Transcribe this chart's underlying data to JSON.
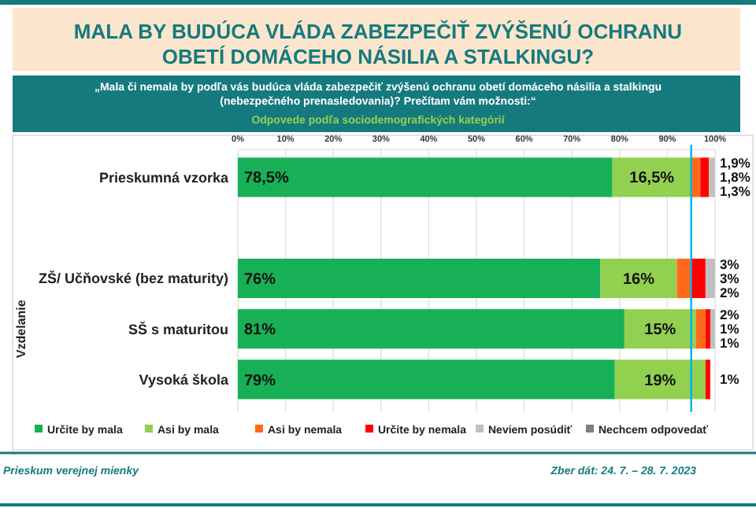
{
  "chart_data": {
    "type": "bar",
    "orientation": "horizontal",
    "stacked": true,
    "title": "MALA BY BUDÚCA VLÁDA ZABEZPEČIŤ ZVÝŠENÚ OCHRANU OBETÍ DOMÁCEHO NÁSILIA A STALKINGU?",
    "subtitle": "„Mala či nemala by podľa vás budúca vláda zabezpečiť zvýšenú ochranu obetí domáceho násilia a stalkingu (nebezpečného prenasledovania)? Prečítam vám možnosti:“",
    "annotations": [
      "Odpovede podľa sociodemografických kategórií",
      "Vzdelanie",
      "Prieskum verejnej mienky",
      "Zber dát: 24. 7. – 28. 7. 2023"
    ],
    "categories": [
      "Prieskumná vzorka",
      null,
      "ZŠ/ Učňovské (bez maturity)",
      "SŠ s maturitou",
      "Vysoká škola"
    ],
    "series": [
      {
        "name": "Určite by mala",
        "color": "#17b057",
        "values": [
          78.5,
          null,
          76,
          81,
          79
        ],
        "value_labels": [
          "78,5%",
          null,
          "76%",
          "81%",
          "79%"
        ]
      },
      {
        "name": "Asi by mala",
        "color": "#92d050",
        "values": [
          16.5,
          null,
          16,
          15,
          19
        ],
        "value_labels": [
          "16,5%",
          null,
          "16%",
          "15%",
          "19%"
        ]
      },
      {
        "name": "Asi by nemala",
        "color": "#ff6a1a",
        "values": [
          1.9,
          null,
          3,
          2,
          null
        ],
        "value_labels": [
          "1,9%",
          null,
          "3%",
          "2%",
          null
        ]
      },
      {
        "name": "Určite by nemala",
        "color": "#ff0000",
        "values": [
          1.8,
          null,
          3,
          1,
          1
        ],
        "value_labels": [
          "1,8%",
          null,
          "3%",
          "1%",
          "1%"
        ]
      },
      {
        "name": "Neviem posúdiť",
        "color": "#c0c0c0",
        "values": [
          1.3,
          null,
          2,
          1,
          null
        ],
        "value_labels": [
          "1,3%",
          null,
          "2%",
          "1%",
          null
        ]
      },
      {
        "name": "Nechcem odpovedať",
        "color": "#808080",
        "values": [
          null,
          null,
          null,
          null,
          null
        ]
      }
    ],
    "xlim": [
      0,
      100
    ],
    "xticks": [
      {
        "value": 0,
        "label": "0%"
      },
      {
        "value": 10,
        "label": "10%"
      },
      {
        "value": 20,
        "label": "20%"
      },
      {
        "value": 30,
        "label": "30%"
      },
      {
        "value": 40,
        "label": "40%"
      },
      {
        "value": 50,
        "label": "50%"
      },
      {
        "value": 60,
        "label": "60%"
      },
      {
        "value": 70,
        "label": "70%"
      },
      {
        "value": 80,
        "label": "80%"
      },
      {
        "value": 90,
        "label": "90%"
      },
      {
        "value": 100,
        "label": "100%"
      }
    ],
    "ref_lines": [
      {
        "axis": "x",
        "value": 95,
        "color": "#00b0f0"
      }
    ],
    "grid": "x",
    "legend": "bottom"
  }
}
